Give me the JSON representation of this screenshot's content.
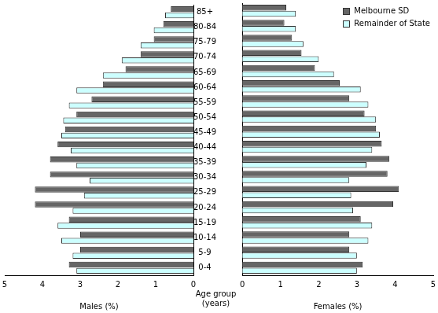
{
  "chart_data": [
    {
      "type": "bar",
      "orientation": "horizontal",
      "grid": false,
      "xlabel": "Males (%)",
      "ylabel": "Age group (years)",
      "categories": [
        "85+",
        "80-84",
        "75-79",
        "70-74",
        "65-69",
        "60-64",
        "55-59",
        "50-54",
        "45-49",
        "40-44",
        "35-39",
        "30-34",
        "25-29",
        "20-24",
        "15-19",
        "10-14",
        "5-9",
        "0-4"
      ],
      "series": [
        {
          "name": "Melbourne SD",
          "color": "#666666",
          "values": [
            0.6,
            0.8,
            1.05,
            1.4,
            1.8,
            2.4,
            2.7,
            3.1,
            3.4,
            3.6,
            3.8,
            3.8,
            4.2,
            4.2,
            3.3,
            3.0,
            3.0,
            3.3
          ]
        },
        {
          "name": "Remainder of State",
          "color": "#ccffff",
          "values": [
            0.75,
            1.05,
            1.4,
            1.9,
            2.4,
            3.1,
            3.3,
            3.45,
            3.5,
            3.25,
            3.1,
            2.75,
            2.9,
            3.2,
            3.6,
            3.5,
            3.2,
            3.1
          ]
        }
      ],
      "xlim": [
        5,
        0
      ],
      "xticks": [
        5,
        4,
        3,
        2,
        1,
        0
      ]
    },
    {
      "type": "bar",
      "orientation": "horizontal",
      "grid": false,
      "legend": "upper right",
      "xlabel": "Females (%)",
      "categories": [
        "85+",
        "80-84",
        "75-79",
        "70-74",
        "65-69",
        "60-64",
        "55-59",
        "50-54",
        "45-49",
        "40-44",
        "35-39",
        "30-34",
        "25-29",
        "20-24",
        "15-19",
        "10-14",
        "5-9",
        "0-4"
      ],
      "series": [
        {
          "name": "Melbourne SD",
          "color": "#666666",
          "values": [
            1.15,
            1.1,
            1.3,
            1.55,
            1.9,
            2.55,
            2.8,
            3.2,
            3.5,
            3.65,
            3.85,
            3.8,
            4.1,
            3.95,
            3.1,
            2.8,
            2.8,
            3.15
          ]
        },
        {
          "name": "Remainder of State",
          "color": "#ccffff",
          "values": [
            1.4,
            1.4,
            1.6,
            2.0,
            2.4,
            3.1,
            3.3,
            3.5,
            3.6,
            3.4,
            3.25,
            2.8,
            2.85,
            2.9,
            3.4,
            3.3,
            3.0,
            3.0
          ]
        }
      ],
      "xlim": [
        0,
        5
      ],
      "xticks": [
        0,
        1,
        2,
        3,
        4,
        5
      ]
    }
  ]
}
